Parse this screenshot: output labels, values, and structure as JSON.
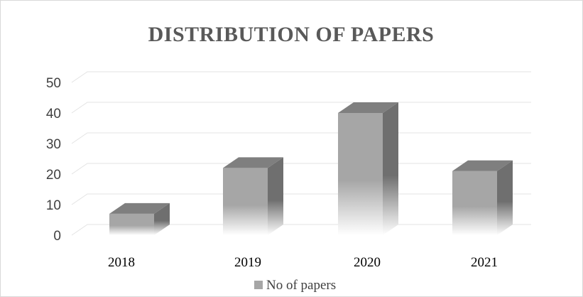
{
  "chart_data": {
    "type": "bar",
    "title": "DISTRIBUTION OF PAPERS",
    "categories": [
      "2018",
      "2019",
      "2020",
      "2021"
    ],
    "series": [
      {
        "name": "No of papers",
        "values": [
          7,
          22,
          40,
          21
        ]
      }
    ],
    "yticks": [
      "0",
      "10",
      "20",
      "30",
      "40",
      "50"
    ],
    "ylim": [
      0,
      50
    ],
    "xlabel": "",
    "ylabel": "",
    "grid": true,
    "legend_position": "bottom",
    "style": "3d-column",
    "colors": {
      "front_top": "#a6a6a6",
      "front_bottom": "#ffffff",
      "side": "#737373",
      "top": "#7f7f7f",
      "grid": "#e3e3e3",
      "legend_swatch": "#a6a6a6"
    }
  }
}
